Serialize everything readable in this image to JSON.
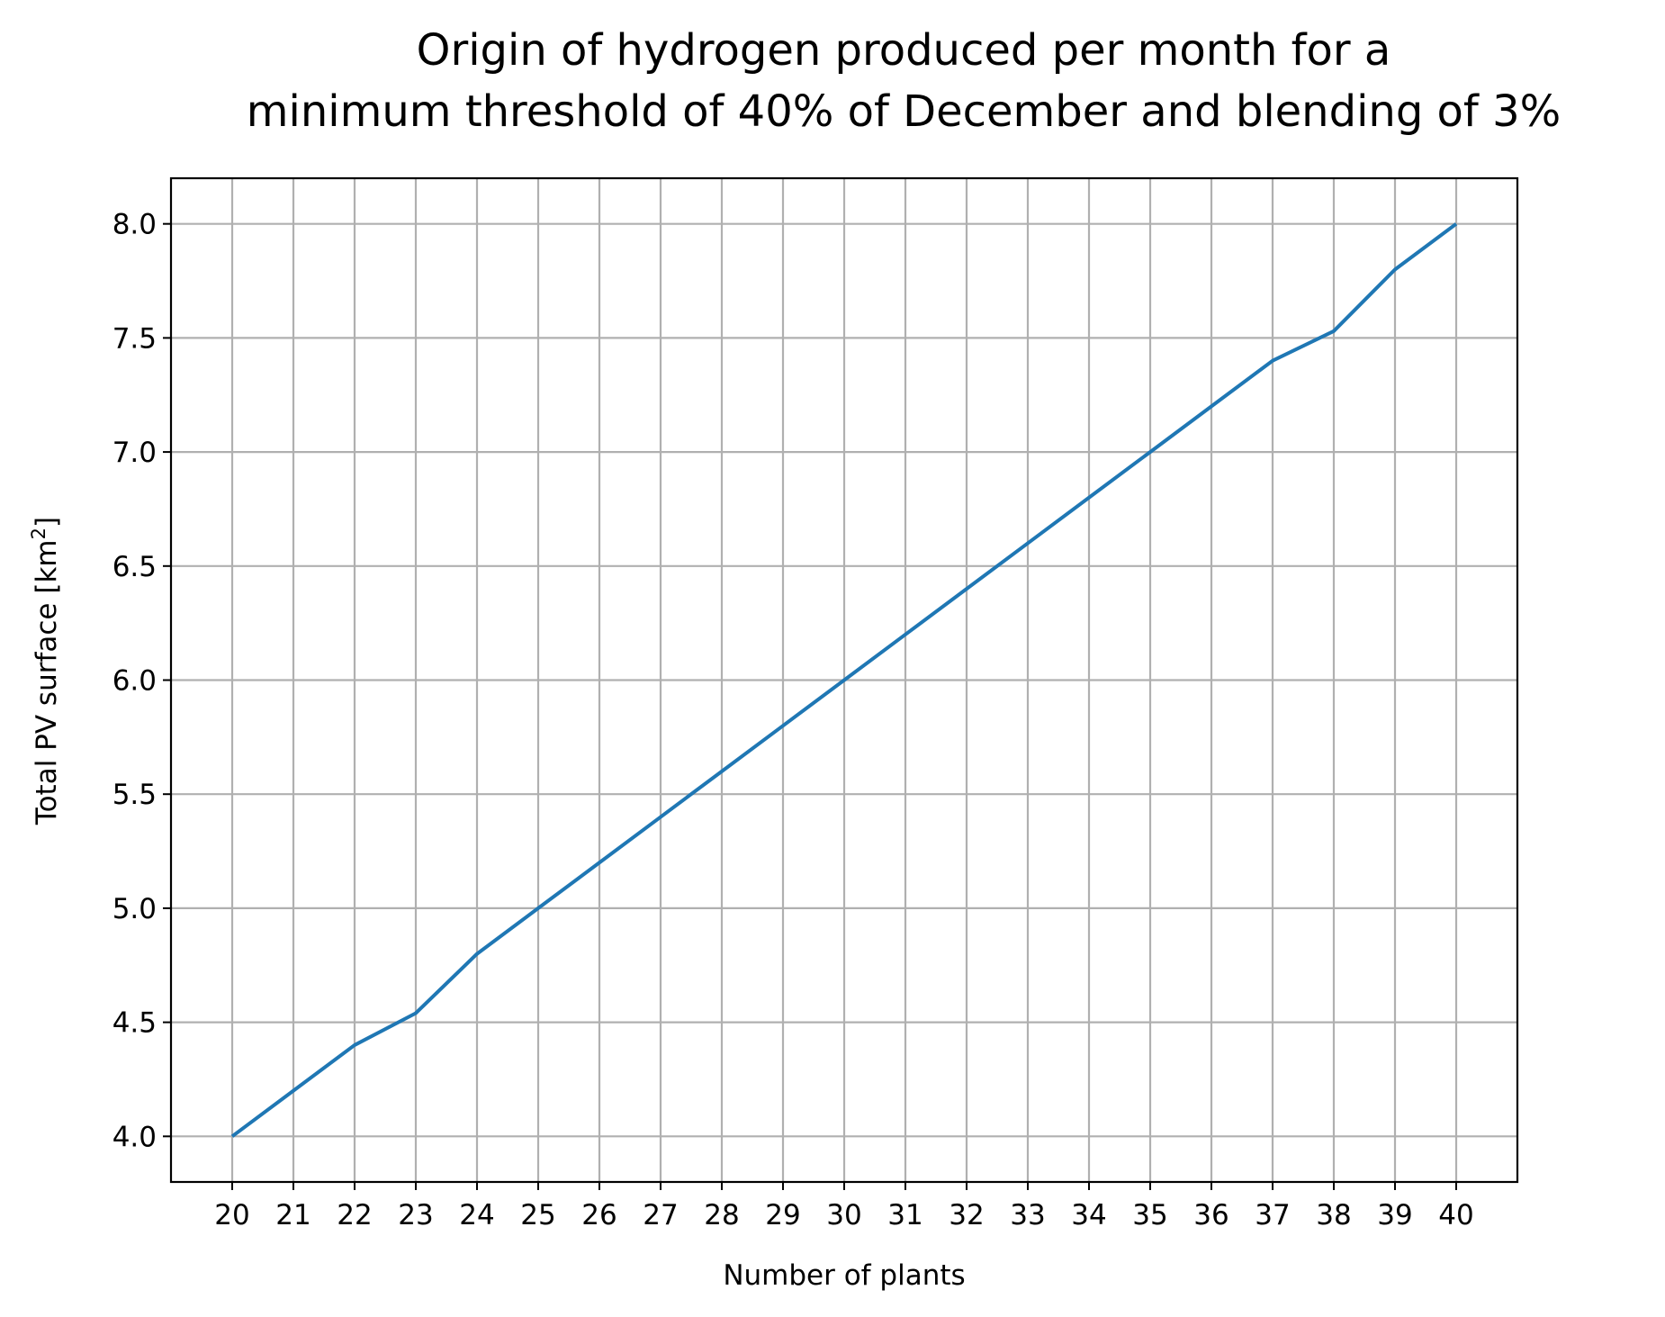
{
  "chart_data": {
    "type": "line",
    "title": [
      "Origin of hydrogen produced per month for a",
      "minimum threshold of 40% of December and blending of 3%"
    ],
    "xlabel": "Number of plants",
    "ylabel_main": "Total PV surface [km",
    "ylabel_sup": "2",
    "ylabel_end": "]",
    "x": [
      20,
      21,
      22,
      23,
      24,
      25,
      26,
      27,
      28,
      29,
      30,
      31,
      32,
      33,
      34,
      35,
      36,
      37,
      38,
      39,
      40
    ],
    "series": [
      {
        "values": [
          4.0,
          4.2,
          4.4,
          4.54,
          4.8,
          5.0,
          5.2,
          5.4,
          5.6,
          5.8,
          6.0,
          6.2,
          6.4,
          6.6,
          6.8,
          7.0,
          7.2,
          7.4,
          7.53,
          7.8,
          8.0
        ],
        "color": "#1f77b4"
      }
    ],
    "xticks": [
      "20",
      "21",
      "22",
      "23",
      "24",
      "25",
      "26",
      "27",
      "28",
      "29",
      "30",
      "31",
      "32",
      "33",
      "34",
      "35",
      "36",
      "37",
      "38",
      "39",
      "40"
    ],
    "yticks": [
      "4.0",
      "4.5",
      "5.0",
      "5.5",
      "6.0",
      "6.5",
      "7.0",
      "7.5",
      "8.0"
    ],
    "xlim": [
      19,
      41
    ],
    "ylim": [
      3.8,
      8.2
    ],
    "grid": true,
    "legend": "none"
  }
}
